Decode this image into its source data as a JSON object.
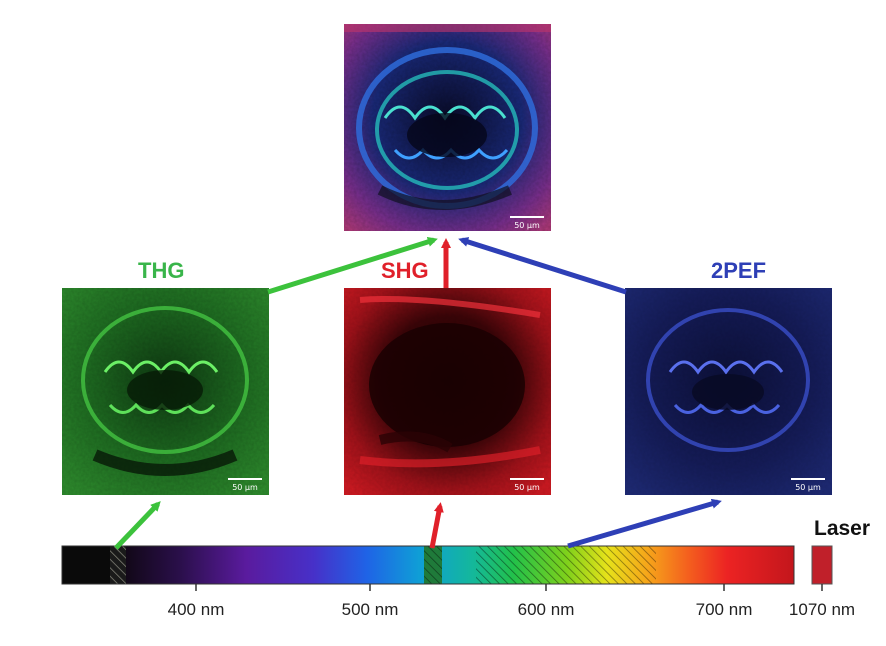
{
  "channels": {
    "thg": {
      "label": "THG",
      "color": "#39b54a"
    },
    "shg": {
      "label": "SHG",
      "color": "#e0202a"
    },
    "pef": {
      "label": "2PEF",
      "color": "#2e3fb6"
    }
  },
  "scale_bar": "50 µm",
  "laser_label": "Laser",
  "spectrum": {
    "ticks": [
      "400 nm",
      "500 nm",
      "600 nm",
      "700 nm",
      "1070 nm"
    ]
  },
  "colors": {
    "arrow_green": "#3cc23c",
    "arrow_red": "#e0202a",
    "arrow_blue": "#2e3fb6",
    "laser": "#c0202a"
  }
}
